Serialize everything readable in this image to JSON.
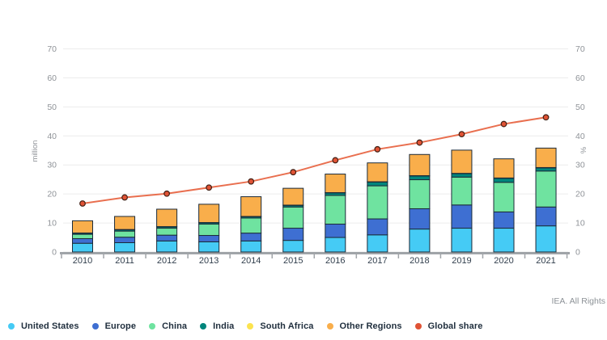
{
  "footer": {
    "credit": "IEA. All Rights"
  },
  "chart_data": {
    "type": "bar",
    "subtype": "stacked-bars-with-line-overlay",
    "title": "",
    "categories": [
      "2010",
      "2011",
      "2012",
      "2013",
      "2014",
      "2015",
      "2016",
      "2017",
      "2018",
      "2019",
      "2020",
      "2021"
    ],
    "left_axis": {
      "title": "million",
      "ticks": [
        0,
        10,
        20,
        30,
        40,
        50,
        60,
        70
      ],
      "ylim": [
        0,
        70
      ],
      "grid": true
    },
    "right_axis": {
      "title": "%",
      "ticks": [
        0,
        10,
        20,
        30,
        40,
        50,
        60,
        70
      ],
      "ylim": [
        0,
        70
      ]
    },
    "legend_position": "bottom-left",
    "series": [
      {
        "name": "United States",
        "color": "#45CBF5",
        "values": [
          3.0,
          3.2,
          3.8,
          3.5,
          3.8,
          4.0,
          5.0,
          5.9,
          7.9,
          8.2,
          8.2,
          9.0
        ]
      },
      {
        "name": "Europe",
        "color": "#3E6FD2",
        "values": [
          1.6,
          1.9,
          2.0,
          2.2,
          2.7,
          4.2,
          4.6,
          5.5,
          7.0,
          8.0,
          5.6,
          6.5
        ]
      },
      {
        "name": "China",
        "color": "#6FE3A0",
        "values": [
          1.5,
          2.1,
          2.4,
          3.9,
          5.2,
          7.3,
          9.9,
          11.4,
          10.0,
          9.6,
          10.2,
          12.4
        ]
      },
      {
        "name": "India",
        "color": "#00857C",
        "values": [
          0.4,
          0.5,
          0.5,
          0.5,
          0.5,
          0.6,
          0.9,
          1.3,
          1.3,
          1.2,
          1.4,
          1.1
        ]
      },
      {
        "name": "South Africa",
        "color": "#FCE34F",
        "values": [
          0.05,
          0.05,
          0.05,
          0.05,
          0.05,
          0.05,
          0.05,
          0.1,
          0.1,
          0.1,
          0.1,
          0.1
        ]
      },
      {
        "name": "Other Regions",
        "color": "#F9AE4B",
        "values": [
          4.2,
          4.5,
          6.0,
          6.3,
          6.8,
          5.8,
          6.4,
          6.5,
          7.3,
          8.0,
          6.6,
          6.7
        ]
      }
    ],
    "line_series": {
      "name": "Global share",
      "color": "#E96F4F",
      "marker_color": "#E05335",
      "values": [
        16.7,
        18.8,
        20.1,
        22.2,
        24.3,
        27.5,
        31.6,
        35.4,
        37.7,
        40.6,
        44.1,
        46.4
      ]
    },
    "style": {
      "grid_color": "#ECECEC",
      "axis_line_color": "#A0A4A8",
      "bar_border_color": "#1C2B39",
      "marker_border_color": "#411F14"
    }
  }
}
